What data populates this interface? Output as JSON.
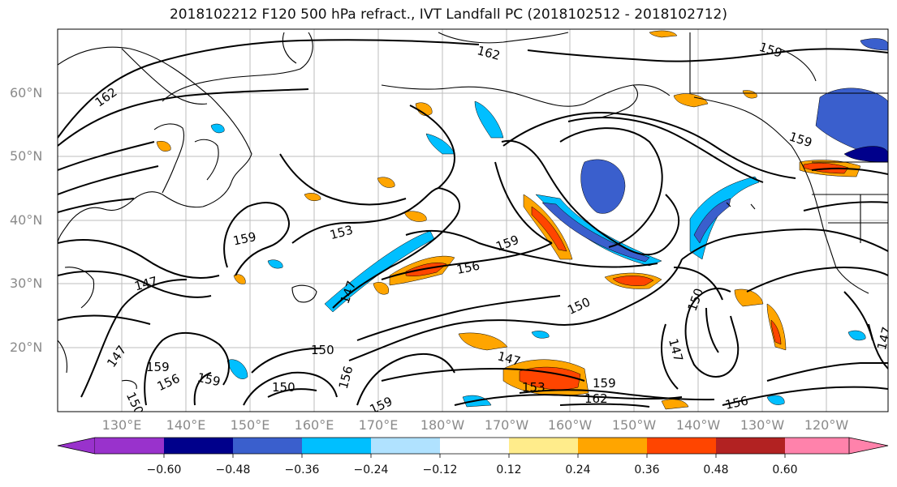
{
  "title": "2018102212 F120 500 hPa refract., IVT Landfall PC (2018102512 - 2018102712)",
  "lat_labels": [
    "60°N",
    "50°N",
    "40°N",
    "30°N",
    "20°N"
  ],
  "lon_labels": [
    "130°E",
    "140°E",
    "150°E",
    "160°E",
    "170°E",
    "180°W",
    "170°W",
    "160°W",
    "150°W",
    "140°W",
    "130°W",
    "120°W"
  ],
  "contour_labels": [
    "162",
    "162",
    "159",
    "159",
    "153",
    "147",
    "147",
    "159",
    "156",
    "150",
    "159",
    "150",
    "156",
    "159",
    "150",
    "159",
    "156",
    "147",
    "153",
    "159",
    "162",
    "159",
    "150",
    "156",
    "150",
    "147",
    "147"
  ],
  "colorbar": {
    "tick_labels": [
      "−0.60",
      "−0.48",
      "−0.36",
      "−0.24",
      "−0.12",
      "0.12",
      "0.24",
      "0.36",
      "0.48",
      "0.60"
    ],
    "colors": [
      "#9932cc",
      "#00008b",
      "#3a5fcd",
      "#00bfff",
      "#b0e2ff",
      "#ffffff",
      "#ffec8b",
      "#ffa500",
      "#ff4500",
      "#b22222",
      "#ff82ab"
    ]
  }
}
